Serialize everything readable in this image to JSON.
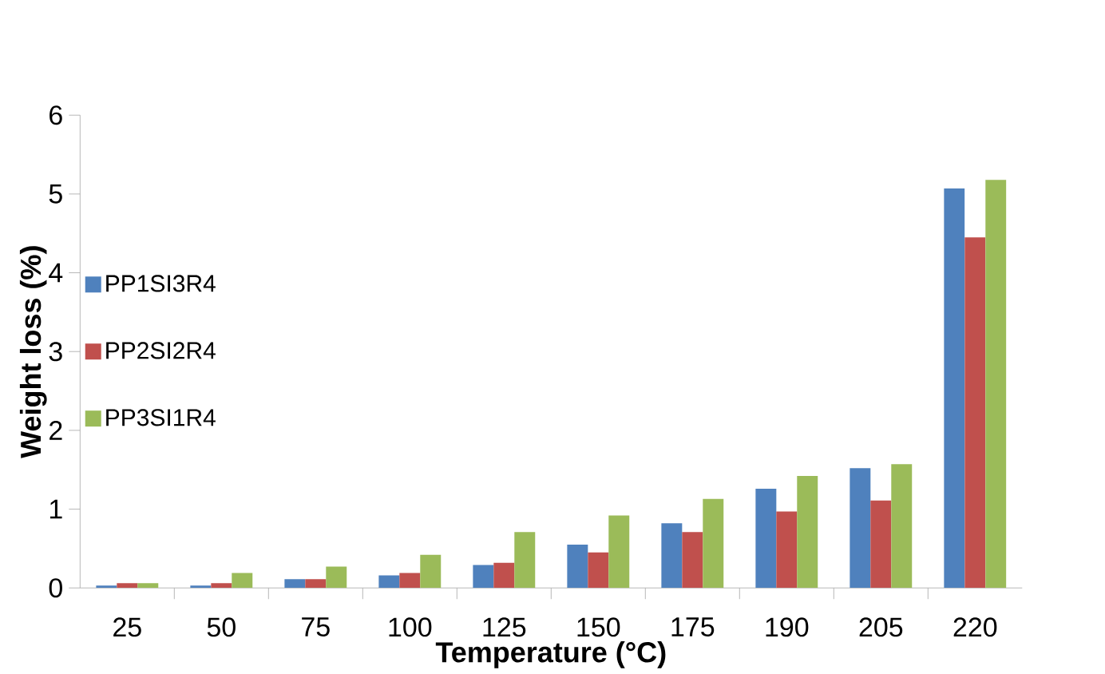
{
  "chart_data": {
    "type": "bar",
    "xlabel": "Temperature (°C)",
    "ylabel": "Weight loss (%)",
    "categories": [
      "25",
      "50",
      "75",
      "100",
      "125",
      "150",
      "175",
      "190",
      "205",
      "220"
    ],
    "series": [
      {
        "name": "PP1SI3R4",
        "color": "#4f81bd",
        "values": [
          0.03,
          0.03,
          0.11,
          0.16,
          0.29,
          0.55,
          0.82,
          1.26,
          1.52,
          5.07
        ]
      },
      {
        "name": "PP2SI2R4",
        "color": "#c0504d",
        "values": [
          0.06,
          0.06,
          0.11,
          0.19,
          0.32,
          0.45,
          0.71,
          0.97,
          1.11,
          4.45
        ]
      },
      {
        "name": "PP3SI1R4",
        "color": "#9bbb59",
        "values": [
          0.06,
          0.19,
          0.27,
          0.42,
          0.71,
          0.92,
          1.13,
          1.42,
          1.57,
          5.18
        ]
      }
    ],
    "ylim": [
      0,
      6
    ],
    "yticks": [
      0,
      1,
      2,
      3,
      4,
      5,
      6
    ],
    "grid": false,
    "legend": "left"
  }
}
